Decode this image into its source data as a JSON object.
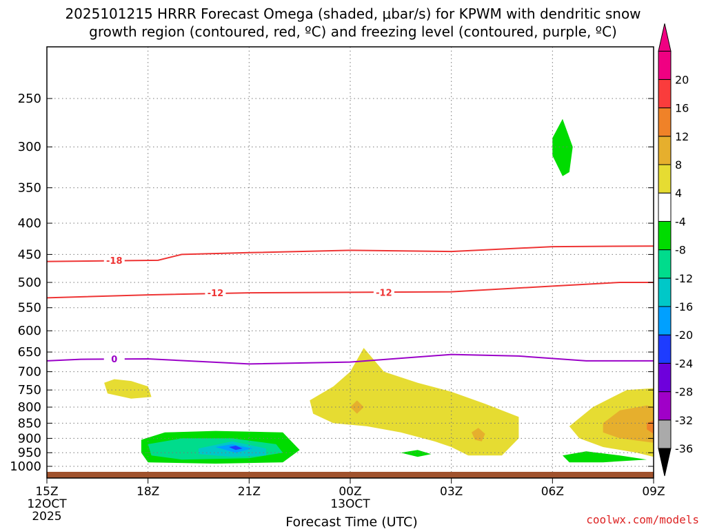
{
  "chart_data": {
    "type": "heatmap",
    "title_line1": "2025101215 HRRR Forecast Omega (shaded, μbar/s) for KPWM with dendritic snow",
    "title_line2": "growth region (contoured, red, ºC) and freezing level (contoured, purple, ºC)",
    "xlabel": "Forecast Time (UTC)",
    "credit": "coolwx.com/models",
    "x_range_hours": [
      0,
      18
    ],
    "x_ticks": [
      {
        "hour": 0,
        "label": "15Z",
        "sub1": "12OCT",
        "sub2": "2025"
      },
      {
        "hour": 3,
        "label": "18Z",
        "sub1": "",
        "sub2": ""
      },
      {
        "hour": 6,
        "label": "21Z",
        "sub1": "",
        "sub2": ""
      },
      {
        "hour": 9,
        "label": "00Z",
        "sub1": "13OCT",
        "sub2": ""
      },
      {
        "hour": 12,
        "label": "03Z",
        "sub1": "",
        "sub2": ""
      },
      {
        "hour": 15,
        "label": "06Z",
        "sub1": "",
        "sub2": ""
      },
      {
        "hour": 18,
        "label": "09Z",
        "sub1": "",
        "sub2": ""
      }
    ],
    "y_ticks_hpa": [
      250,
      300,
      350,
      400,
      450,
      500,
      550,
      600,
      650,
      700,
      750,
      800,
      850,
      900,
      950,
      1000
    ],
    "y_range_hpa": [
      200,
      1020
    ],
    "colorbar": {
      "bins": [
        {
          "label": "",
          "color": "#aaaaaa"
        },
        {
          "label": "-36",
          "color": "#aaaaaa"
        },
        {
          "label": "-32",
          "color": "#a000c8"
        },
        {
          "label": "-28",
          "color": "#6e00dc"
        },
        {
          "label": "-24",
          "color": "#1e3cff"
        },
        {
          "label": "-20",
          "color": "#00a0ff"
        },
        {
          "label": "-16",
          "color": "#00c8c8"
        },
        {
          "label": "-12",
          "color": "#00dc8c"
        },
        {
          "label": "-8",
          "color": "#00dc00"
        },
        {
          "label": "-4",
          "color": "#ffffff"
        },
        {
          "label": "4",
          "color": "#e6dc32"
        },
        {
          "label": "8",
          "color": "#e6af2d"
        },
        {
          "label": "12",
          "color": "#f08228"
        },
        {
          "label": "16",
          "color": "#fa3c3c"
        },
        {
          "label": "20",
          "color": "#f00082"
        }
      ],
      "low_triangle_color": "#000000",
      "high_triangle_color": "#f00082"
    },
    "contours": [
      {
        "label": "-18",
        "color": "#ee3333",
        "points": [
          [
            0,
            462
          ],
          [
            3.3,
            460
          ],
          [
            4,
            450
          ],
          [
            6,
            447
          ],
          [
            9,
            443
          ],
          [
            12,
            445
          ],
          [
            15,
            437
          ],
          [
            18,
            436
          ]
        ]
      },
      {
        "label": "-12",
        "color": "#ee3333",
        "points": [
          [
            0,
            530
          ],
          [
            3,
            524
          ],
          [
            6,
            520
          ],
          [
            9,
            519
          ],
          [
            12,
            518
          ],
          [
            15,
            507
          ],
          [
            17,
            500
          ],
          [
            18,
            500
          ]
        ]
      },
      {
        "label": "0",
        "color": "#9a00c8",
        "points": [
          [
            0,
            672
          ],
          [
            1,
            668
          ],
          [
            3,
            667
          ],
          [
            6,
            680
          ],
          [
            9,
            675
          ],
          [
            12,
            656
          ],
          [
            14,
            660
          ],
          [
            16,
            672
          ],
          [
            18,
            672
          ]
        ]
      }
    ],
    "contour_label_positions": [
      {
        "text": "-18",
        "hour": 2,
        "hpa": 460
      },
      {
        "text": "-12",
        "hour": 5,
        "hpa": 520
      },
      {
        "text": "-12",
        "hour": 10,
        "hpa": 519
      },
      {
        "text": "0",
        "hour": 2,
        "hpa": 667
      }
    ],
    "omega_regions": [
      {
        "level": "-4",
        "points": [
          [
            1,
            240
          ],
          [
            1.5,
            300
          ],
          [
            1.9,
            360
          ],
          [
            2.3,
            420
          ],
          [
            1.5,
            455
          ],
          [
            1,
            462
          ],
          [
            0.7,
            420
          ],
          [
            0.7,
            380
          ],
          [
            0.8,
            330
          ],
          [
            0.7,
            280
          ]
        ]
      },
      {
        "level": "-4",
        "points": [
          [
            2.5,
            270
          ],
          [
            3,
            250
          ],
          [
            3.5,
            270
          ],
          [
            4,
            310
          ],
          [
            4.2,
            325
          ],
          [
            3,
            310
          ],
          [
            2.6,
            290
          ]
        ]
      },
      {
        "level": "-4",
        "points": [
          [
            14.8,
            270
          ],
          [
            15.2,
            260
          ],
          [
            16,
            290
          ],
          [
            16.5,
            320
          ],
          [
            17,
            300
          ],
          [
            17.6,
            290
          ],
          [
            18,
            320
          ],
          [
            17.5,
            365
          ],
          [
            16.8,
            400
          ],
          [
            16,
            360
          ],
          [
            15.3,
            345
          ],
          [
            14.8,
            320
          ]
        ]
      },
      {
        "level": "-8",
        "points": [
          [
            15,
            290
          ],
          [
            15.3,
            270
          ],
          [
            15.6,
            300
          ],
          [
            15.5,
            330
          ],
          [
            15.3,
            335
          ],
          [
            15,
            310
          ]
        ]
      },
      {
        "level": "-4",
        "points": [
          [
            18,
            420
          ],
          [
            17.7,
            480
          ],
          [
            17.4,
            540
          ],
          [
            17.5,
            560
          ],
          [
            18,
            570
          ]
        ]
      },
      {
        "level": "-4",
        "points": [
          [
            5.7,
            590
          ],
          [
            5.9,
            580
          ],
          [
            6.1,
            610
          ],
          [
            6,
            650
          ],
          [
            5.8,
            620
          ]
        ]
      },
      {
        "level": "-4",
        "points": [
          [
            7.9,
            560
          ],
          [
            8.1,
            550
          ],
          [
            8.2,
            580
          ],
          [
            8,
            610
          ],
          [
            7.8,
            580
          ]
        ]
      },
      {
        "level": "-4",
        "points": [
          [
            2.7,
            610
          ],
          [
            3,
            600
          ],
          [
            3.3,
            625
          ],
          [
            3,
            650
          ],
          [
            2.7,
            630
          ]
        ]
      },
      {
        "level": "-4",
        "points": [
          [
            15.7,
            720
          ],
          [
            16,
            700
          ],
          [
            16.1,
            730
          ],
          [
            15.9,
            745
          ]
        ]
      },
      {
        "level": "-4",
        "points": [
          [
            2.6,
            890
          ],
          [
            3.5,
            860
          ],
          [
            5,
            855
          ],
          [
            7.2,
            860
          ],
          [
            8,
            880
          ],
          [
            8,
            980
          ],
          [
            7,
            1000
          ],
          [
            5,
            1005
          ],
          [
            3,
            1000
          ],
          [
            2.5,
            960
          ]
        ]
      },
      {
        "level": "-8",
        "points": [
          [
            2.8,
            905
          ],
          [
            3.5,
            880
          ],
          [
            5,
            875
          ],
          [
            7,
            880
          ],
          [
            7.5,
            940
          ],
          [
            7,
            985
          ],
          [
            5,
            990
          ],
          [
            3,
            985
          ],
          [
            2.8,
            950
          ]
        ]
      },
      {
        "level": "-12",
        "points": [
          [
            3,
            920
          ],
          [
            4,
            900
          ],
          [
            5.5,
            900
          ],
          [
            6.8,
            920
          ],
          [
            7,
            950
          ],
          [
            6,
            970
          ],
          [
            4,
            975
          ],
          [
            3.1,
            960
          ]
        ]
      },
      {
        "level": "-16",
        "points": [
          [
            4.5,
            935
          ],
          [
            5.5,
            910
          ],
          [
            6.5,
            935
          ],
          [
            6.5,
            960
          ],
          [
            5.5,
            965
          ],
          [
            4.5,
            955
          ]
        ]
      },
      {
        "level": "-20",
        "points": [
          [
            5,
            930
          ],
          [
            5.5,
            920
          ],
          [
            6.1,
            935
          ],
          [
            5.6,
            950
          ]
        ]
      },
      {
        "level": "-24",
        "points": [
          [
            5.4,
            930
          ],
          [
            5.6,
            925
          ],
          [
            5.8,
            935
          ],
          [
            5.6,
            940
          ]
        ]
      },
      {
        "level": "-4",
        "points": [
          [
            8.5,
            960
          ],
          [
            9.8,
            950
          ],
          [
            11,
            920
          ],
          [
            12,
            930
          ],
          [
            12.4,
            955
          ],
          [
            11,
            975
          ],
          [
            9,
            990
          ],
          [
            8.4,
            975
          ]
        ]
      },
      {
        "level": "-8",
        "points": [
          [
            10.5,
            950
          ],
          [
            11,
            940
          ],
          [
            11.4,
            955
          ],
          [
            11,
            965
          ]
        ]
      },
      {
        "level": "-4",
        "points": [
          [
            14.8,
            930
          ],
          [
            15.5,
            910
          ],
          [
            16,
            930
          ],
          [
            17,
            940
          ],
          [
            18,
            970
          ],
          [
            17.5,
            990
          ],
          [
            16,
            995
          ],
          [
            14.8,
            980
          ]
        ]
      },
      {
        "level": "-8",
        "points": [
          [
            15.3,
            960
          ],
          [
            16,
            945
          ],
          [
            17,
            960
          ],
          [
            17.8,
            975
          ],
          [
            16.5,
            985
          ],
          [
            15.5,
            985
          ]
        ]
      },
      {
        "level": "4",
        "points": [
          [
            2,
            720
          ],
          [
            2.5,
            725
          ],
          [
            3,
            740
          ],
          [
            3.1,
            770
          ],
          [
            2.5,
            775
          ],
          [
            1.8,
            760
          ],
          [
            1.7,
            730
          ]
        ]
      },
      {
        "level": "4",
        "points": [
          [
            7.8,
            780
          ],
          [
            8.5,
            740
          ],
          [
            9,
            700
          ],
          [
            9.4,
            640
          ],
          [
            10,
            700
          ],
          [
            11,
            730
          ],
          [
            12,
            755
          ],
          [
            13,
            790
          ],
          [
            14,
            830
          ],
          [
            14,
            900
          ],
          [
            13.5,
            960
          ],
          [
            12.5,
            960
          ],
          [
            12,
            930
          ],
          [
            11.5,
            910
          ],
          [
            10.5,
            880
          ],
          [
            9.5,
            860
          ],
          [
            8.5,
            850
          ],
          [
            7.9,
            820
          ]
        ]
      },
      {
        "level": "8",
        "points": [
          [
            9,
            800
          ],
          [
            9.2,
            780
          ],
          [
            9.4,
            800
          ],
          [
            9.2,
            820
          ]
        ]
      },
      {
        "level": "8",
        "points": [
          [
            12.6,
            880
          ],
          [
            12.8,
            865
          ],
          [
            13,
            885
          ],
          [
            12.9,
            910
          ],
          [
            12.7,
            905
          ]
        ]
      },
      {
        "level": "4",
        "points": [
          [
            15.5,
            860
          ],
          [
            16.2,
            800
          ],
          [
            17.2,
            750
          ],
          [
            18,
            745
          ],
          [
            18,
            965
          ],
          [
            17.5,
            950
          ],
          [
            16.5,
            930
          ],
          [
            15.8,
            900
          ]
        ]
      },
      {
        "level": "8",
        "points": [
          [
            16.5,
            850
          ],
          [
            17,
            810
          ],
          [
            17.8,
            795
          ],
          [
            18,
            800
          ],
          [
            18,
            915
          ],
          [
            17,
            900
          ],
          [
            16.5,
            880
          ]
        ]
      },
      {
        "level": "12",
        "points": [
          [
            17.8,
            850
          ],
          [
            18,
            840
          ],
          [
            18,
            885
          ],
          [
            17.8,
            870
          ]
        ]
      }
    ]
  }
}
